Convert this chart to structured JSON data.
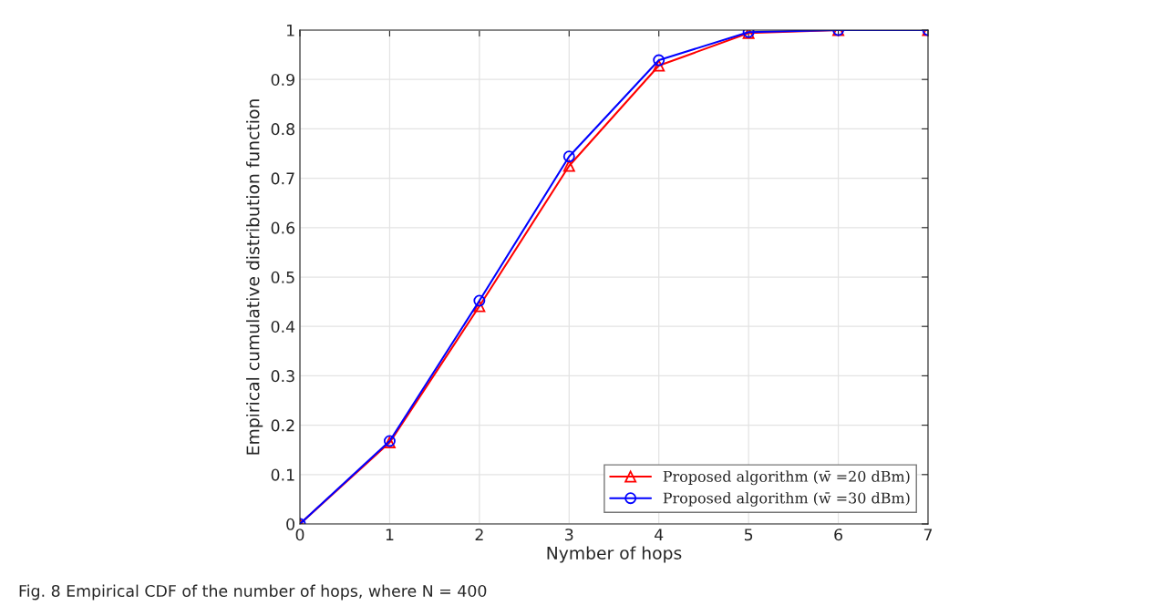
{
  "chart_data": {
    "type": "line",
    "xlabel": "Nymber of hops",
    "ylabel": "Empirical cumulative distribution function",
    "x": [
      0,
      1,
      2,
      3,
      4,
      5,
      6,
      7
    ],
    "series": [
      {
        "name": "Proposed algorithm (w̄ =20 dBm)",
        "color": "#ff0000",
        "marker": "triangle",
        "values": [
          0,
          0.165,
          0.441,
          0.725,
          0.928,
          0.994,
          1,
          1
        ]
      },
      {
        "name": "Proposed algorithm (w̄ =30 dBm)",
        "color": "#0000ff",
        "marker": "circle",
        "values": [
          0,
          0.168,
          0.452,
          0.744,
          0.939,
          0.996,
          1,
          1
        ]
      }
    ],
    "xlim": [
      0,
      7
    ],
    "xticks": [
      0,
      1,
      2,
      3,
      4,
      5,
      6,
      7
    ],
    "ylim": [
      0,
      1
    ],
    "yticks": [
      0,
      0.1,
      0.2,
      0.3,
      0.4,
      0.5,
      0.6,
      0.7,
      0.8,
      0.9,
      1
    ],
    "grid": true,
    "legend": "bottom right",
    "annotations": [
      "Fig. 8 Empirical CDF of the number of hops, where N = 400"
    ]
  }
}
